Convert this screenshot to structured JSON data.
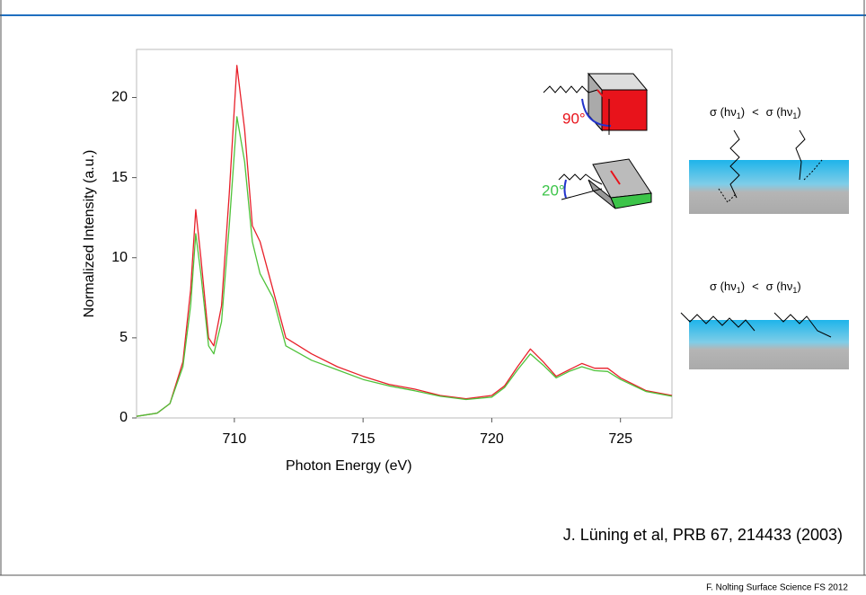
{
  "chart_data": {
    "type": "line",
    "xlabel": "Photon Energy (eV)",
    "ylabel": "Normalized Intensity (a.u.)",
    "xlim": [
      706.2,
      727
    ],
    "ylim": [
      0,
      23
    ],
    "xticks": [
      710,
      715,
      720,
      725
    ],
    "yticks": [
      0,
      5,
      10,
      15,
      20
    ],
    "x": [
      706.2,
      707,
      707.5,
      708,
      708.3,
      708.5,
      708.7,
      709,
      709.2,
      709.5,
      709.8,
      710.1,
      710.4,
      710.7,
      711,
      711.5,
      712,
      713,
      714,
      715,
      716,
      717,
      718,
      719,
      720,
      720.5,
      721,
      721.5,
      722,
      722.5,
      723,
      723.5,
      724,
      724.5,
      725,
      726,
      727
    ],
    "series": [
      {
        "color": "#e8202a",
        "values": [
          0.1,
          0.3,
          0.9,
          3.5,
          8,
          13.0,
          10,
          5,
          4.5,
          7,
          14,
          22.0,
          18,
          12,
          11,
          8,
          5,
          4,
          3.2,
          2.6,
          2.1,
          1.8,
          1.4,
          1.2,
          1.4,
          2.0,
          3.2,
          4.3,
          3.5,
          2.6,
          3.0,
          3.4,
          3.1,
          3.1,
          2.5,
          1.7,
          1.4
        ]
      },
      {
        "color": "#4fc23a",
        "values": [
          0.1,
          0.3,
          0.9,
          3.2,
          7,
          11.5,
          9,
          4.5,
          4.0,
          6,
          12,
          18.8,
          16,
          11,
          9,
          7.5,
          4.5,
          3.6,
          3.0,
          2.4,
          2.0,
          1.7,
          1.35,
          1.15,
          1.3,
          1.9,
          3.0,
          4.0,
          3.3,
          2.5,
          2.9,
          3.2,
          2.95,
          2.9,
          2.4,
          1.65,
          1.35
        ]
      }
    ]
  },
  "annotations": {
    "angle_90": "90°",
    "angle_20": "20°"
  },
  "diagrams": [
    {
      "sigma_a": "σ (hν",
      "sub_a": "1",
      "close_a": ")",
      "relation": "<",
      "sigma_b": "σ (hν",
      "sub_b": "1",
      "close_b": ")"
    },
    {
      "sigma_a": "σ (hν",
      "sub_a": "1",
      "close_a": ")",
      "relation": "<",
      "sigma_b": "σ (hν",
      "sub_b": "1",
      "close_b": ")"
    }
  ],
  "citation": "J. Lüning et al, PRB 67, 214433 (2003)",
  "footer": "F. Nolting Surface Science FS 2012"
}
